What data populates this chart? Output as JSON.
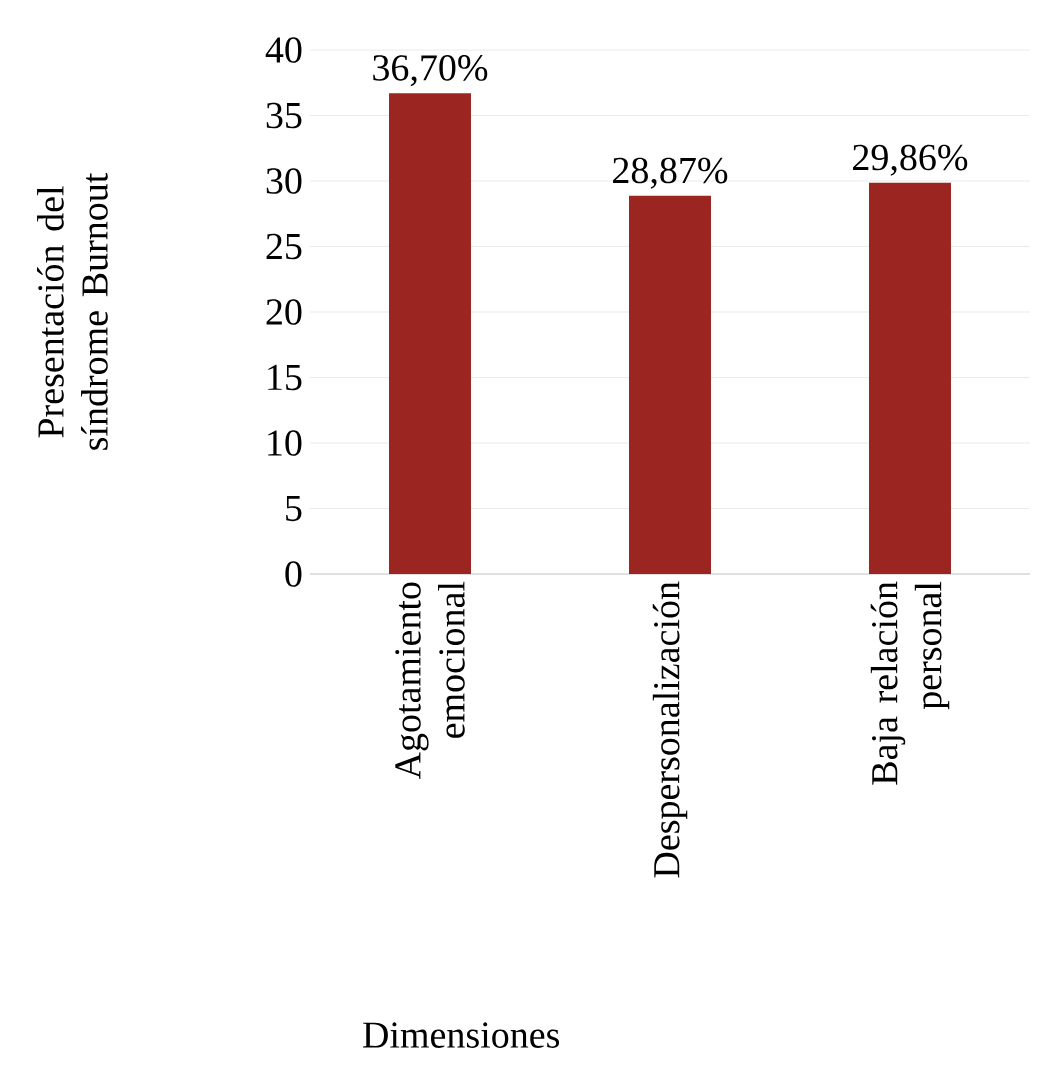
{
  "chart_data": {
    "type": "bar",
    "categories": [
      "Agotamiento emocional",
      "Despersonalización",
      "Baja relación personal"
    ],
    "values": [
      36.7,
      28.87,
      29.86
    ],
    "value_labels": [
      "36,70%",
      "28,87%",
      "29,86%"
    ],
    "color": "#9b2520",
    "ylabel": "Presentación del síndrome Burnout",
    "xlabel": "Dimensiones",
    "ylim": [
      0,
      40
    ],
    "yticks": [
      0,
      5,
      10,
      15,
      20,
      25,
      30,
      35,
      40
    ],
    "grid": "y"
  }
}
